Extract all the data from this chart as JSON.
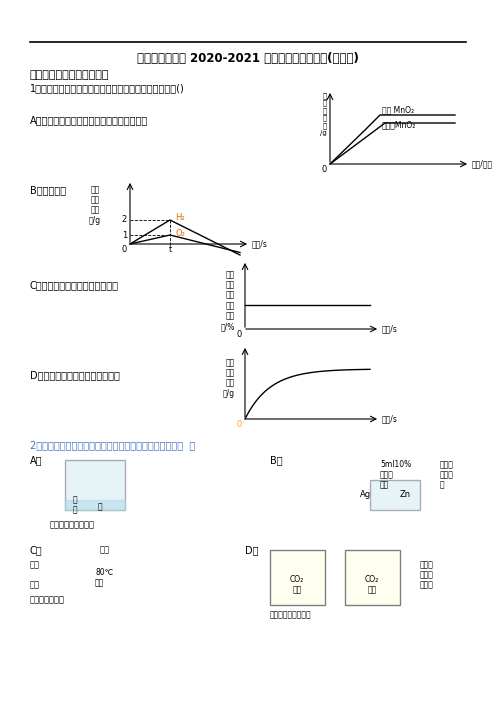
{
  "title": "天津市南开中学 2020-2021 年上册期末化学试题(含答案)",
  "section1": "一、九年级化学上册选择题",
  "q1_text": "1．下图所示的四个图像，能正确反映对应变化关系的是()",
  "q2_text": "2．下列问题的研究中，没有利用对比实验思想方法的是（  ）",
  "A_label": "A．等质量、等浓度的过氧化氢溶液制取氧气",
  "B_label": "B．水的电解",
  "C_label": "C．加热一定量的高锰酸钾制氧气",
  "D_label": "D．木炭在密闭的容器内完全燃烧",
  "bg_color": "#ffffff",
  "line_color": "#000000",
  "blue_color": "#4472c4",
  "orange_color": "#e36c09"
}
